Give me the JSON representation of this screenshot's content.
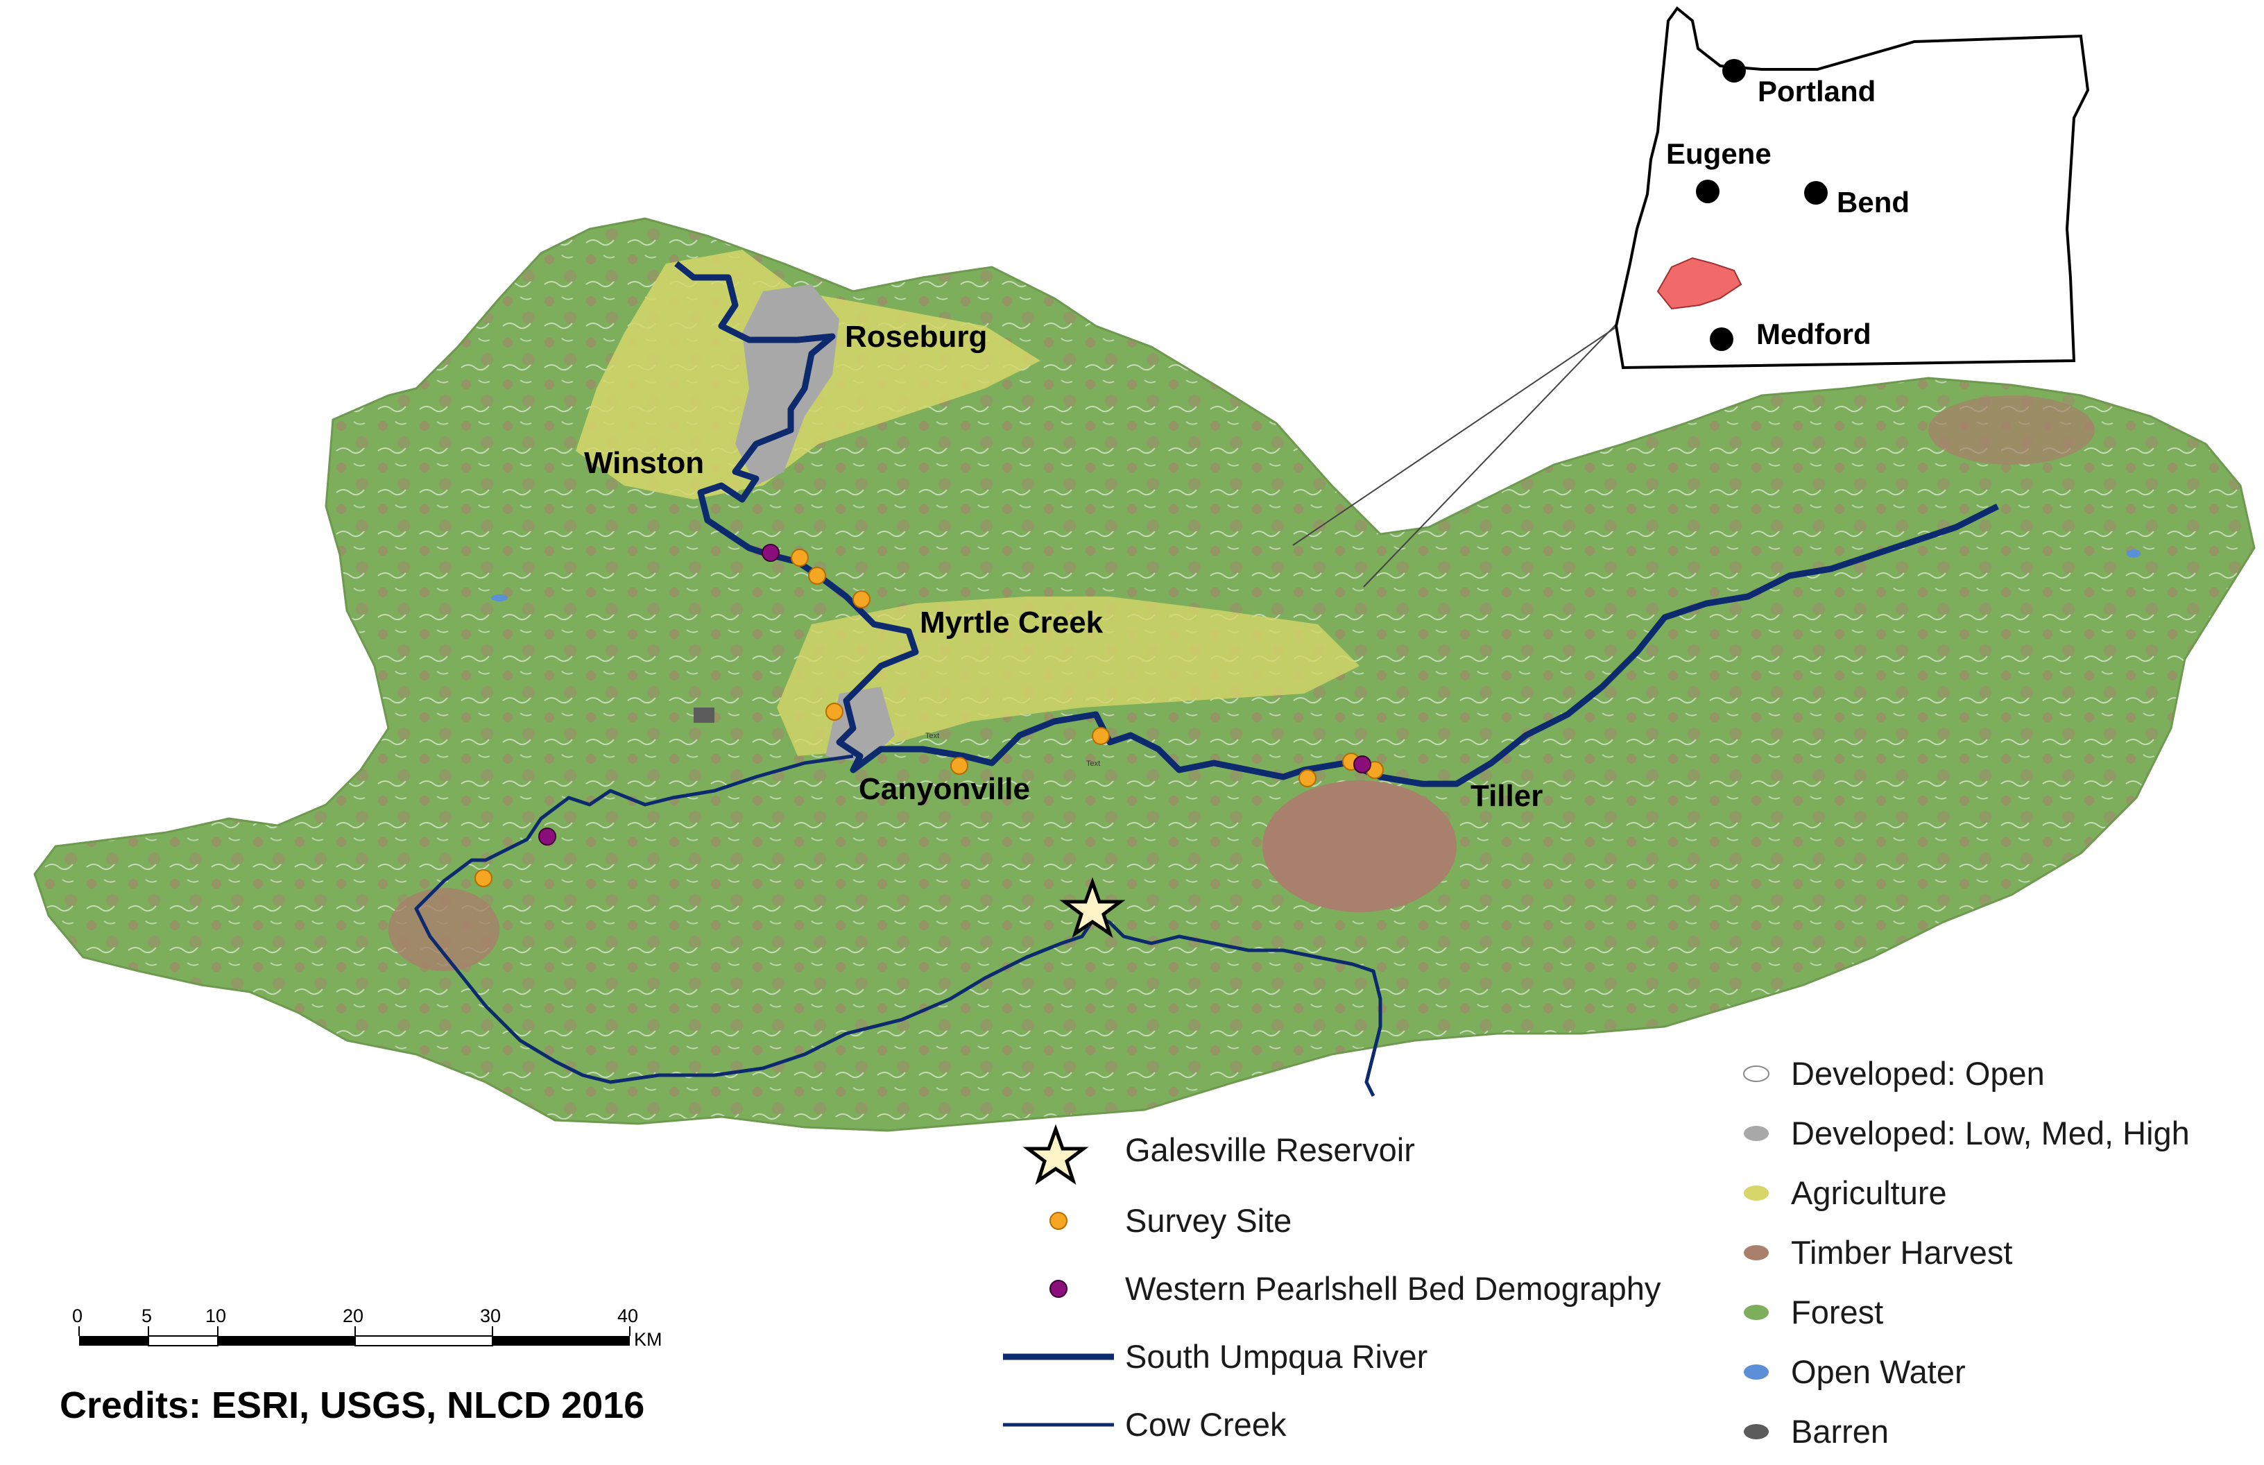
{
  "cities": {
    "roseburg": "Roseburg",
    "winston": "Winston",
    "myrtle_creek": "Myrtle Creek",
    "canyonville": "Canyonville",
    "tiller": "Tiller"
  },
  "inset": {
    "portland": "Portland",
    "eugene": "Eugene",
    "bend": "Bend",
    "medford": "Medford"
  },
  "small_text": [
    "Text",
    "Text"
  ],
  "legend_features": [
    {
      "label": "Galesville Reservoir",
      "icon": "star-icon"
    },
    {
      "label": "Survey Site",
      "icon": "orange-dot",
      "color": "#f5a623"
    },
    {
      "label": "Western Pearlshell Bed Demography",
      "icon": "purple-dot",
      "color": "#8b0f7a"
    },
    {
      "label": "South Umpqua River",
      "icon": "thick-line",
      "color": "#0d2a6e"
    },
    {
      "label": "Cow Creek",
      "icon": "thin-line",
      "color": "#0d2a6e"
    }
  ],
  "legend_landcover": [
    {
      "label": "Developed: Open",
      "color": "#ffffff"
    },
    {
      "label": "Developed: Low, Med, High",
      "color": "#a8a8a8"
    },
    {
      "label": "Agriculture",
      "color": "#d6d66a"
    },
    {
      "label": "Timber Harvest",
      "color": "#a8806c"
    },
    {
      "label": "Forest",
      "color": "#7cae5c"
    },
    {
      "label": "Open Water",
      "color": "#5b8fd6"
    },
    {
      "label": "Barren",
      "color": "#5c5c5c"
    }
  ],
  "scale": {
    "ticks": [
      "0",
      "5",
      "10",
      "20",
      "30",
      "40"
    ],
    "unit": "KM"
  },
  "credits": "Credits: ESRI, USGS, NLCD 2016"
}
